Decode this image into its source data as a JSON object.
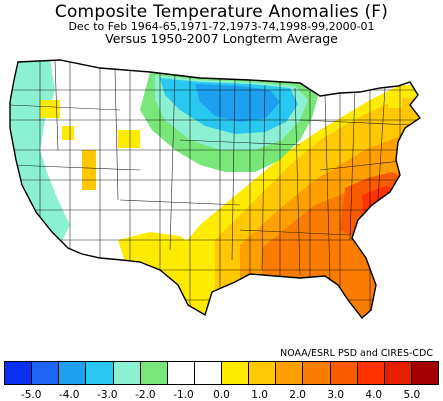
{
  "title": "Composite Temperature Anomalies (F)",
  "subtitle": "Dec to Feb  1964-65,1971-72,1973-74,1998-99,2000-01",
  "subtitle2": "Versus 1950-2007 Longterm Average",
  "credit": "NOAA/ESRL PSD and CIRES-CDC",
  "legend": {
    "colors": [
      "#0a2ff0",
      "#1e64f5",
      "#1ea0f0",
      "#28c8f0",
      "#8cf0d2",
      "#78e678",
      "#ffffff",
      "#ffffff",
      "#ffeb00",
      "#ffc800",
      "#ffa000",
      "#fa7d00",
      "#fa5a00",
      "#ff3200",
      "#e61e00",
      "#a00000"
    ],
    "ticks": [
      "-5.0",
      "-4.0",
      "-3.0",
      "-2.0",
      "-1.0",
      "0.0",
      "1.0",
      "2.0",
      "3.0",
      "4.0",
      "5.0"
    ]
  },
  "map_regions": [
    {
      "name": "pacific-northwest",
      "color": "#8cf0d2"
    },
    {
      "name": "california-coast",
      "color": "#8cf0d2"
    },
    {
      "name": "great-basin",
      "color": "#ffffff"
    },
    {
      "name": "northern-rockies",
      "color": "#ffffff"
    },
    {
      "name": "northern-plains",
      "color": "#28c8f0"
    },
    {
      "name": "upper-midwest",
      "color": "#1ea0f0"
    },
    {
      "name": "central-plains",
      "color": "#8cf0d2"
    },
    {
      "name": "southwest",
      "color": "#ffeb00"
    },
    {
      "name": "texas",
      "color": "#ffeb00"
    },
    {
      "name": "ohio-valley",
      "color": "#ffc800"
    },
    {
      "name": "southeast",
      "color": "#fa7d00"
    },
    {
      "name": "carolina-coast",
      "color": "#ff3200"
    },
    {
      "name": "northeast",
      "color": "#ffc800"
    },
    {
      "name": "florida",
      "color": "#fa7d00"
    }
  ]
}
